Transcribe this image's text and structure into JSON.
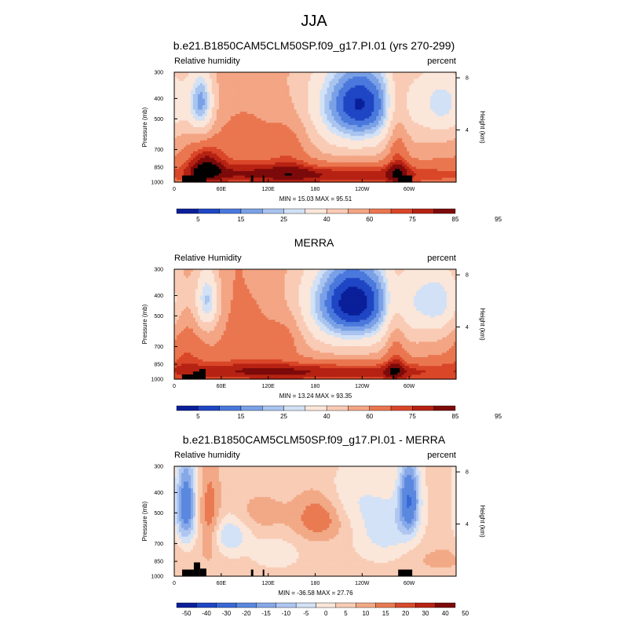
{
  "page": {
    "title": "JJA"
  },
  "colors": {
    "hum_fill": [
      "#0a1f9a",
      "#1f46c4",
      "#4a78dc",
      "#7aa1e7",
      "#a9c4ef",
      "#d2e1f5",
      "#fbe6da",
      "#f9cbb5",
      "#f3a584",
      "#ea7650",
      "#d94628",
      "#b62213",
      "#7d0a0a"
    ],
    "diff_fill": [
      "#0a1f9a",
      "#1f46c4",
      "#3968d6",
      "#5b88df",
      "#86a8e8",
      "#aec6f0",
      "#d3e2f6",
      "#fbe6da",
      "#f8ccb5",
      "#f2a986",
      "#e97a52",
      "#d74b2c",
      "#b72314",
      "#7d0a0a"
    ],
    "topo": "#000000"
  },
  "chart_data": [
    {
      "type": "heatmap",
      "id": "model",
      "title": "b.e21.B1850CAM5CLM50SP.f09_g17.PI.01 (yrs 270-299)",
      "left_label": "Relative humidity",
      "right_label": "percent",
      "ylabel": "Pressure (mb)",
      "ylabel_right": "Height (km)",
      "xticks": [
        "0",
        "60E",
        "120E",
        "180",
        "120W",
        "60W"
      ],
      "xtick_lon": [
        0,
        60,
        120,
        180,
        240,
        300
      ],
      "xlim": [
        0,
        360
      ],
      "yticks": [
        "300",
        "400",
        "500",
        "700",
        "850",
        "1000"
      ],
      "ytick_p": [
        300,
        400,
        500,
        700,
        850,
        1000
      ],
      "ylim": [
        1000,
        300
      ],
      "right_ticks": [
        "4",
        "8"
      ],
      "right_tick_km": [
        4,
        8
      ],
      "stats": "MIN = 15.03  MAX = 95.51",
      "colorbar_labels": [
        "5",
        "15",
        "25",
        "40",
        "60",
        "75",
        "85",
        "95"
      ],
      "levels": [
        5,
        10,
        15,
        20,
        25,
        30,
        40,
        50,
        60,
        70,
        75,
        80,
        85,
        90,
        95
      ],
      "palette": "hum",
      "field": {
        "base": 58,
        "blobs": [
          {
            "lon": 240,
            "p": 420,
            "dlon": 38,
            "dp": 160,
            "amp": -40
          },
          {
            "lon": 205,
            "p": 520,
            "dlon": 70,
            "dp": 260,
            "amp": -12
          },
          {
            "lon": 35,
            "p": 420,
            "dlon": 12,
            "dp": 120,
            "amp": -35
          },
          {
            "lon": 345,
            "p": 420,
            "dlon": 26,
            "dp": 130,
            "amp": -28
          },
          {
            "lon": 180,
            "p": 920,
            "dlon": 150,
            "dp": 90,
            "amp": 25
          },
          {
            "lon": 40,
            "p": 800,
            "dlon": 18,
            "dp": 140,
            "amp": 20
          },
          {
            "lon": 285,
            "p": 650,
            "dlon": 10,
            "dp": 300,
            "amp": 18
          },
          {
            "lon": 100,
            "p": 600,
            "dlon": 30,
            "dp": 200,
            "amp": 10
          },
          {
            "lon": 150,
            "p": 650,
            "dlon": 20,
            "dp": 180,
            "amp": 14
          },
          {
            "lon": 175,
            "p": 400,
            "dlon": 80,
            "dp": 150,
            "amp": -5
          }
        ]
      },
      "topo": [
        {
          "lon0": 10,
          "lon1": 25,
          "p0": 930
        },
        {
          "lon0": 25,
          "lon1": 32,
          "p0": 860
        },
        {
          "lon0": 32,
          "lon1": 41,
          "p0": 920
        },
        {
          "lon0": 98,
          "lon1": 101,
          "p0": 930
        },
        {
          "lon0": 113,
          "lon1": 115,
          "p0": 930
        },
        {
          "lon0": 286,
          "lon1": 304,
          "p0": 930
        }
      ]
    },
    {
      "type": "heatmap",
      "id": "merra",
      "title": "MERRA",
      "left_label": "Relative Humidity",
      "right_label": "percent",
      "ylabel": "Pressure (mb)",
      "ylabel_right": "Height (km)",
      "xticks": [
        "0",
        "60E",
        "120E",
        "180",
        "120W",
        "60W"
      ],
      "xtick_lon": [
        0,
        60,
        120,
        180,
        240,
        300
      ],
      "xlim": [
        0,
        360
      ],
      "yticks": [
        "300",
        "400",
        "500",
        "700",
        "850",
        "1000"
      ],
      "ytick_p": [
        300,
        400,
        500,
        700,
        850,
        1000
      ],
      "ylim": [
        1000,
        300
      ],
      "right_ticks": [
        "4",
        "8"
      ],
      "right_tick_km": [
        4,
        8
      ],
      "stats": "MIN = 13.24  MAX = 93.35",
      "colorbar_labels": [
        "5",
        "15",
        "25",
        "40",
        "60",
        "75",
        "85",
        "95"
      ],
      "levels": [
        5,
        10,
        15,
        20,
        25,
        30,
        40,
        50,
        60,
        70,
        75,
        80,
        85,
        90,
        95
      ],
      "palette": "hum",
      "field": {
        "base": 62,
        "blobs": [
          {
            "lon": 230,
            "p": 420,
            "dlon": 45,
            "dp": 170,
            "amp": -48
          },
          {
            "lon": 215,
            "p": 520,
            "dlon": 80,
            "dp": 260,
            "amp": -14
          },
          {
            "lon": 42,
            "p": 420,
            "dlon": 12,
            "dp": 120,
            "amp": -35
          },
          {
            "lon": 340,
            "p": 420,
            "dlon": 28,
            "dp": 140,
            "amp": -30
          },
          {
            "lon": 180,
            "p": 920,
            "dlon": 160,
            "dp": 80,
            "amp": 22
          },
          {
            "lon": 145,
            "p": 620,
            "dlon": 16,
            "dp": 120,
            "amp": 12
          },
          {
            "lon": 282,
            "p": 650,
            "dlon": 10,
            "dp": 280,
            "amp": 16
          },
          {
            "lon": 15,
            "p": 650,
            "dlon": 15,
            "dp": 200,
            "amp": 10
          },
          {
            "lon": 100,
            "p": 620,
            "dlon": 25,
            "dp": 160,
            "amp": 8
          }
        ]
      },
      "topo": [
        {
          "lon0": 10,
          "lon1": 24,
          "p0": 950
        },
        {
          "lon0": 24,
          "lon1": 32,
          "p0": 920
        },
        {
          "lon0": 32,
          "lon1": 40,
          "p0": 895
        },
        {
          "lon0": 279,
          "lon1": 281,
          "p0": 960
        }
      ]
    },
    {
      "type": "heatmap",
      "id": "diff",
      "title": "b.e21.B1850CAM5CLM50SP.f09_g17.PI.01 - MERRA",
      "left_label": "Relative humidity",
      "right_label": "percent",
      "ylabel": "Pressure (mb)",
      "ylabel_right": "Height (km)",
      "xticks": [
        "0",
        "60E",
        "120E",
        "180",
        "120W",
        "60W"
      ],
      "xtick_lon": [
        0,
        60,
        120,
        180,
        240,
        300
      ],
      "xlim": [
        0,
        360
      ],
      "yticks": [
        "300",
        "400",
        "500",
        "700",
        "850",
        "1000"
      ],
      "ytick_p": [
        300,
        400,
        500,
        700,
        850,
        1000
      ],
      "ylim": [
        1000,
        300
      ],
      "right_ticks": [
        "4",
        "8"
      ],
      "right_tick_km": [
        4,
        8
      ],
      "stats": "MIN = -36.58  MAX = 27.76",
      "colorbar_labels": [
        "-50",
        "-40",
        "-30",
        "-20",
        "-15",
        "-10",
        "-5",
        "0",
        "5",
        "10",
        "15",
        "20",
        "30",
        "40",
        "50"
      ],
      "levels": [
        -50,
        -40,
        -30,
        -20,
        -15,
        -10,
        -5,
        0,
        5,
        10,
        15,
        20,
        30,
        40,
        50
      ],
      "palette": "diff",
      "field": {
        "base": 1.5,
        "blobs": [
          {
            "lon": 15,
            "p": 460,
            "dlon": 9,
            "dp": 150,
            "amp": -28
          },
          {
            "lon": 300,
            "p": 430,
            "dlon": 9,
            "dp": 120,
            "amp": -30
          },
          {
            "lon": 185,
            "p": 520,
            "dlon": 22,
            "dp": 100,
            "amp": 14
          },
          {
            "lon": 70,
            "p": 640,
            "dlon": 18,
            "dp": 90,
            "amp": -12
          },
          {
            "lon": 270,
            "p": 600,
            "dlon": 25,
            "dp": 140,
            "amp": -10
          },
          {
            "lon": 220,
            "p": 430,
            "dlon": 30,
            "dp": 90,
            "amp": -6
          },
          {
            "lon": 110,
            "p": 500,
            "dlon": 25,
            "dp": 80,
            "amp": 6
          },
          {
            "lon": 45,
            "p": 520,
            "dlon": 10,
            "dp": 200,
            "amp": 12
          },
          {
            "lon": 130,
            "p": 780,
            "dlon": 18,
            "dp": 80,
            "amp": -6
          },
          {
            "lon": 340,
            "p": 830,
            "dlon": 30,
            "dp": 100,
            "amp": 5
          }
        ]
      },
      "topo": [
        {
          "lon0": 10,
          "lon1": 25,
          "p0": 930
        },
        {
          "lon0": 25,
          "lon1": 33,
          "p0": 860
        },
        {
          "lon0": 33,
          "lon1": 41,
          "p0": 920
        },
        {
          "lon0": 98,
          "lon1": 101,
          "p0": 930
        },
        {
          "lon0": 113,
          "lon1": 115,
          "p0": 930
        },
        {
          "lon0": 286,
          "lon1": 304,
          "p0": 930
        }
      ]
    }
  ]
}
